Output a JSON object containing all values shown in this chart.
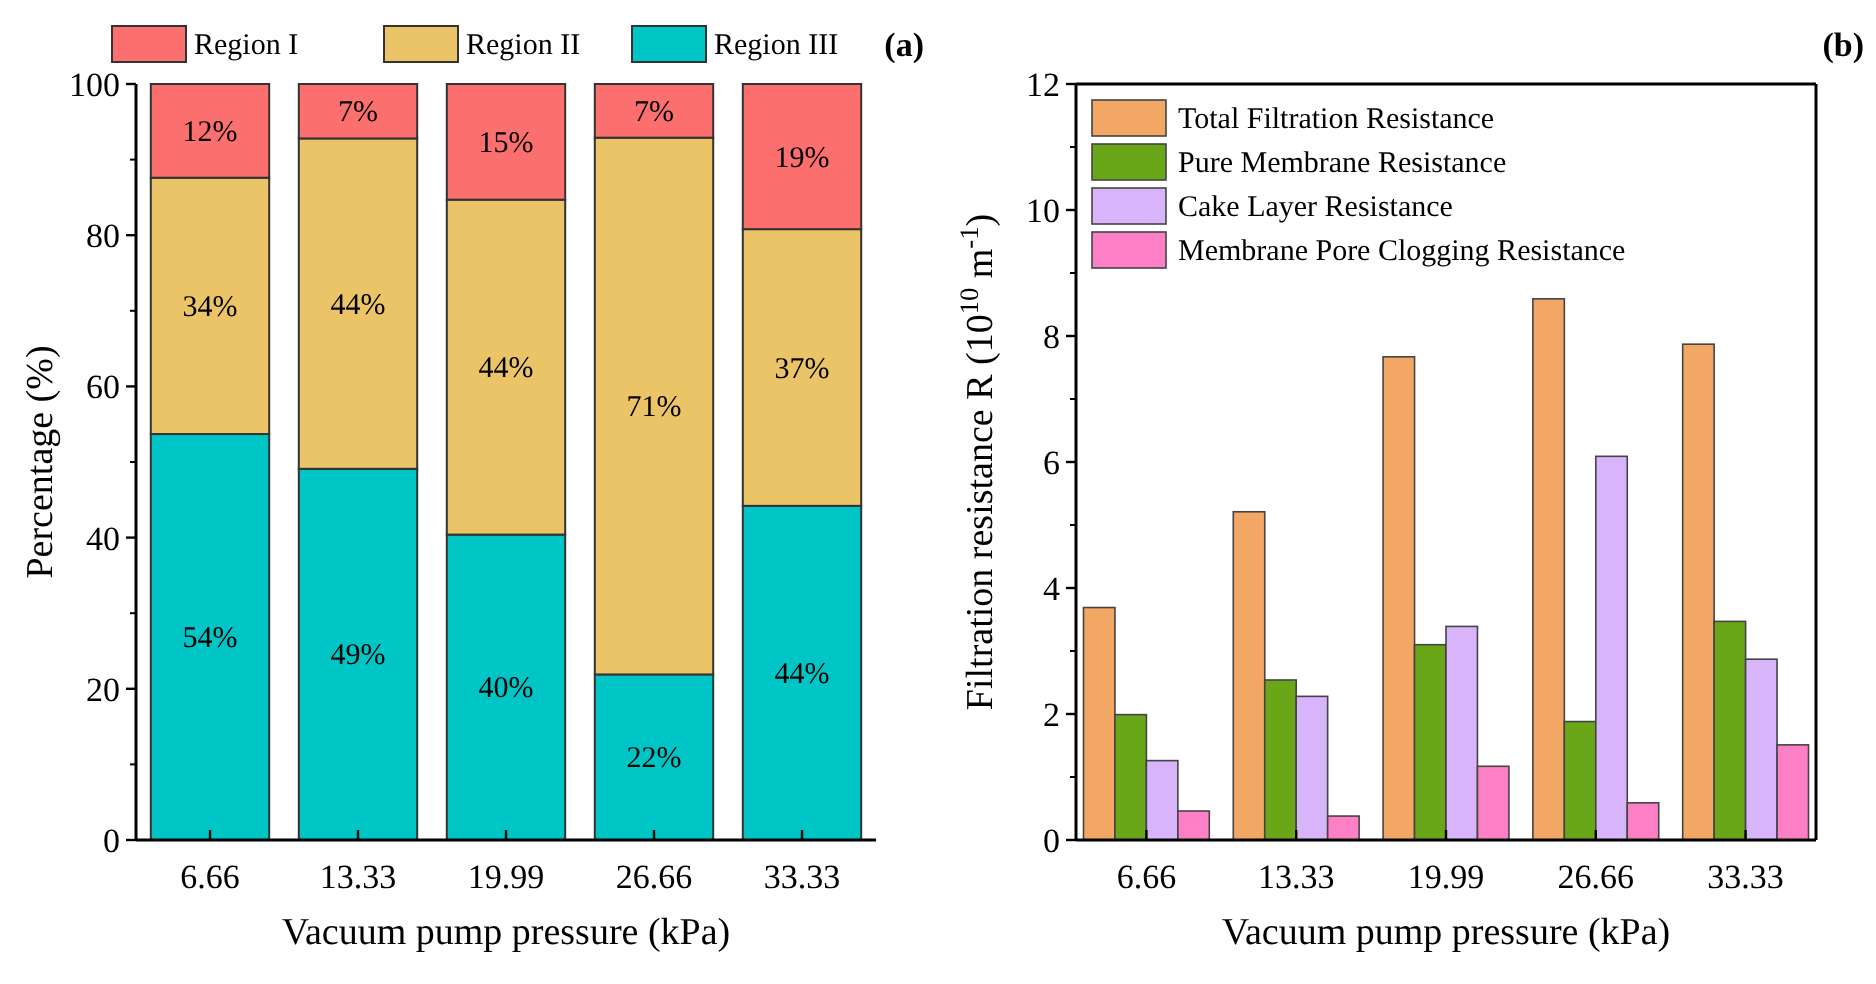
{
  "chart_data": [
    {
      "type": "bar",
      "stacked": true,
      "categories": [
        "6.66",
        "13.33",
        "19.99",
        "26.66",
        "33.33"
      ],
      "xlabel": "Vacuum pump pressure (kPa)",
      "ylabel": "Percentage (%)",
      "ylim": [
        0,
        100
      ],
      "yticks": [
        0,
        20,
        40,
        60,
        80,
        100
      ],
      "legend": "top",
      "annotations": [
        "(a)"
      ],
      "series": [
        {
          "name": "Region III",
          "color": "#00c5c6",
          "values": [
            53.7,
            49.1,
            40.4,
            21.9,
            44.2
          ],
          "value_labels": [
            "54%",
            "49%",
            "40%",
            "22%",
            "44%"
          ]
        },
        {
          "name": "Region II",
          "color": "#ebc468",
          "values": [
            33.9,
            43.7,
            44.3,
            71.0,
            36.6
          ],
          "value_labels": [
            "34%",
            "44%",
            "44%",
            "71%",
            "37%"
          ]
        },
        {
          "name": "Region I",
          "color": "#fb6f6e",
          "values": [
            12.4,
            7.2,
            15.3,
            7.1,
            19.2
          ],
          "value_labels": [
            "12%",
            "7%",
            "15%",
            "7%",
            "19%"
          ]
        }
      ]
    },
    {
      "type": "bar",
      "categories": [
        "6.66",
        "13.33",
        "19.99",
        "26.66",
        "33.33"
      ],
      "xlabel": "Vacuum pump pressure (kPa)",
      "ylabel": "Filtration resistance R (10$^{10}$ m$^{-1}$)",
      "ylim": [
        0,
        12
      ],
      "yticks": [
        0,
        2,
        4,
        6,
        8,
        10,
        12
      ],
      "legend": "top left",
      "annotations": [
        "(b)"
      ],
      "series": [
        {
          "name": "Total Filtration Resistance",
          "color": "#f2a765",
          "values": [
            3.69,
            5.21,
            7.67,
            8.59,
            7.87
          ]
        },
        {
          "name": "Pure Membrane Resistance",
          "color": "#6aa718",
          "values": [
            1.99,
            2.54,
            3.1,
            1.88,
            3.47
          ]
        },
        {
          "name": "Cake Layer Resistance",
          "color": "#d8b4fb",
          "values": [
            1.26,
            2.28,
            3.39,
            6.09,
            2.87
          ]
        },
        {
          "name": "Membrane Pore Clogging Resistance",
          "color": "#fd80c6",
          "values": [
            0.46,
            0.38,
            1.17,
            0.59,
            1.51
          ]
        }
      ]
    }
  ]
}
